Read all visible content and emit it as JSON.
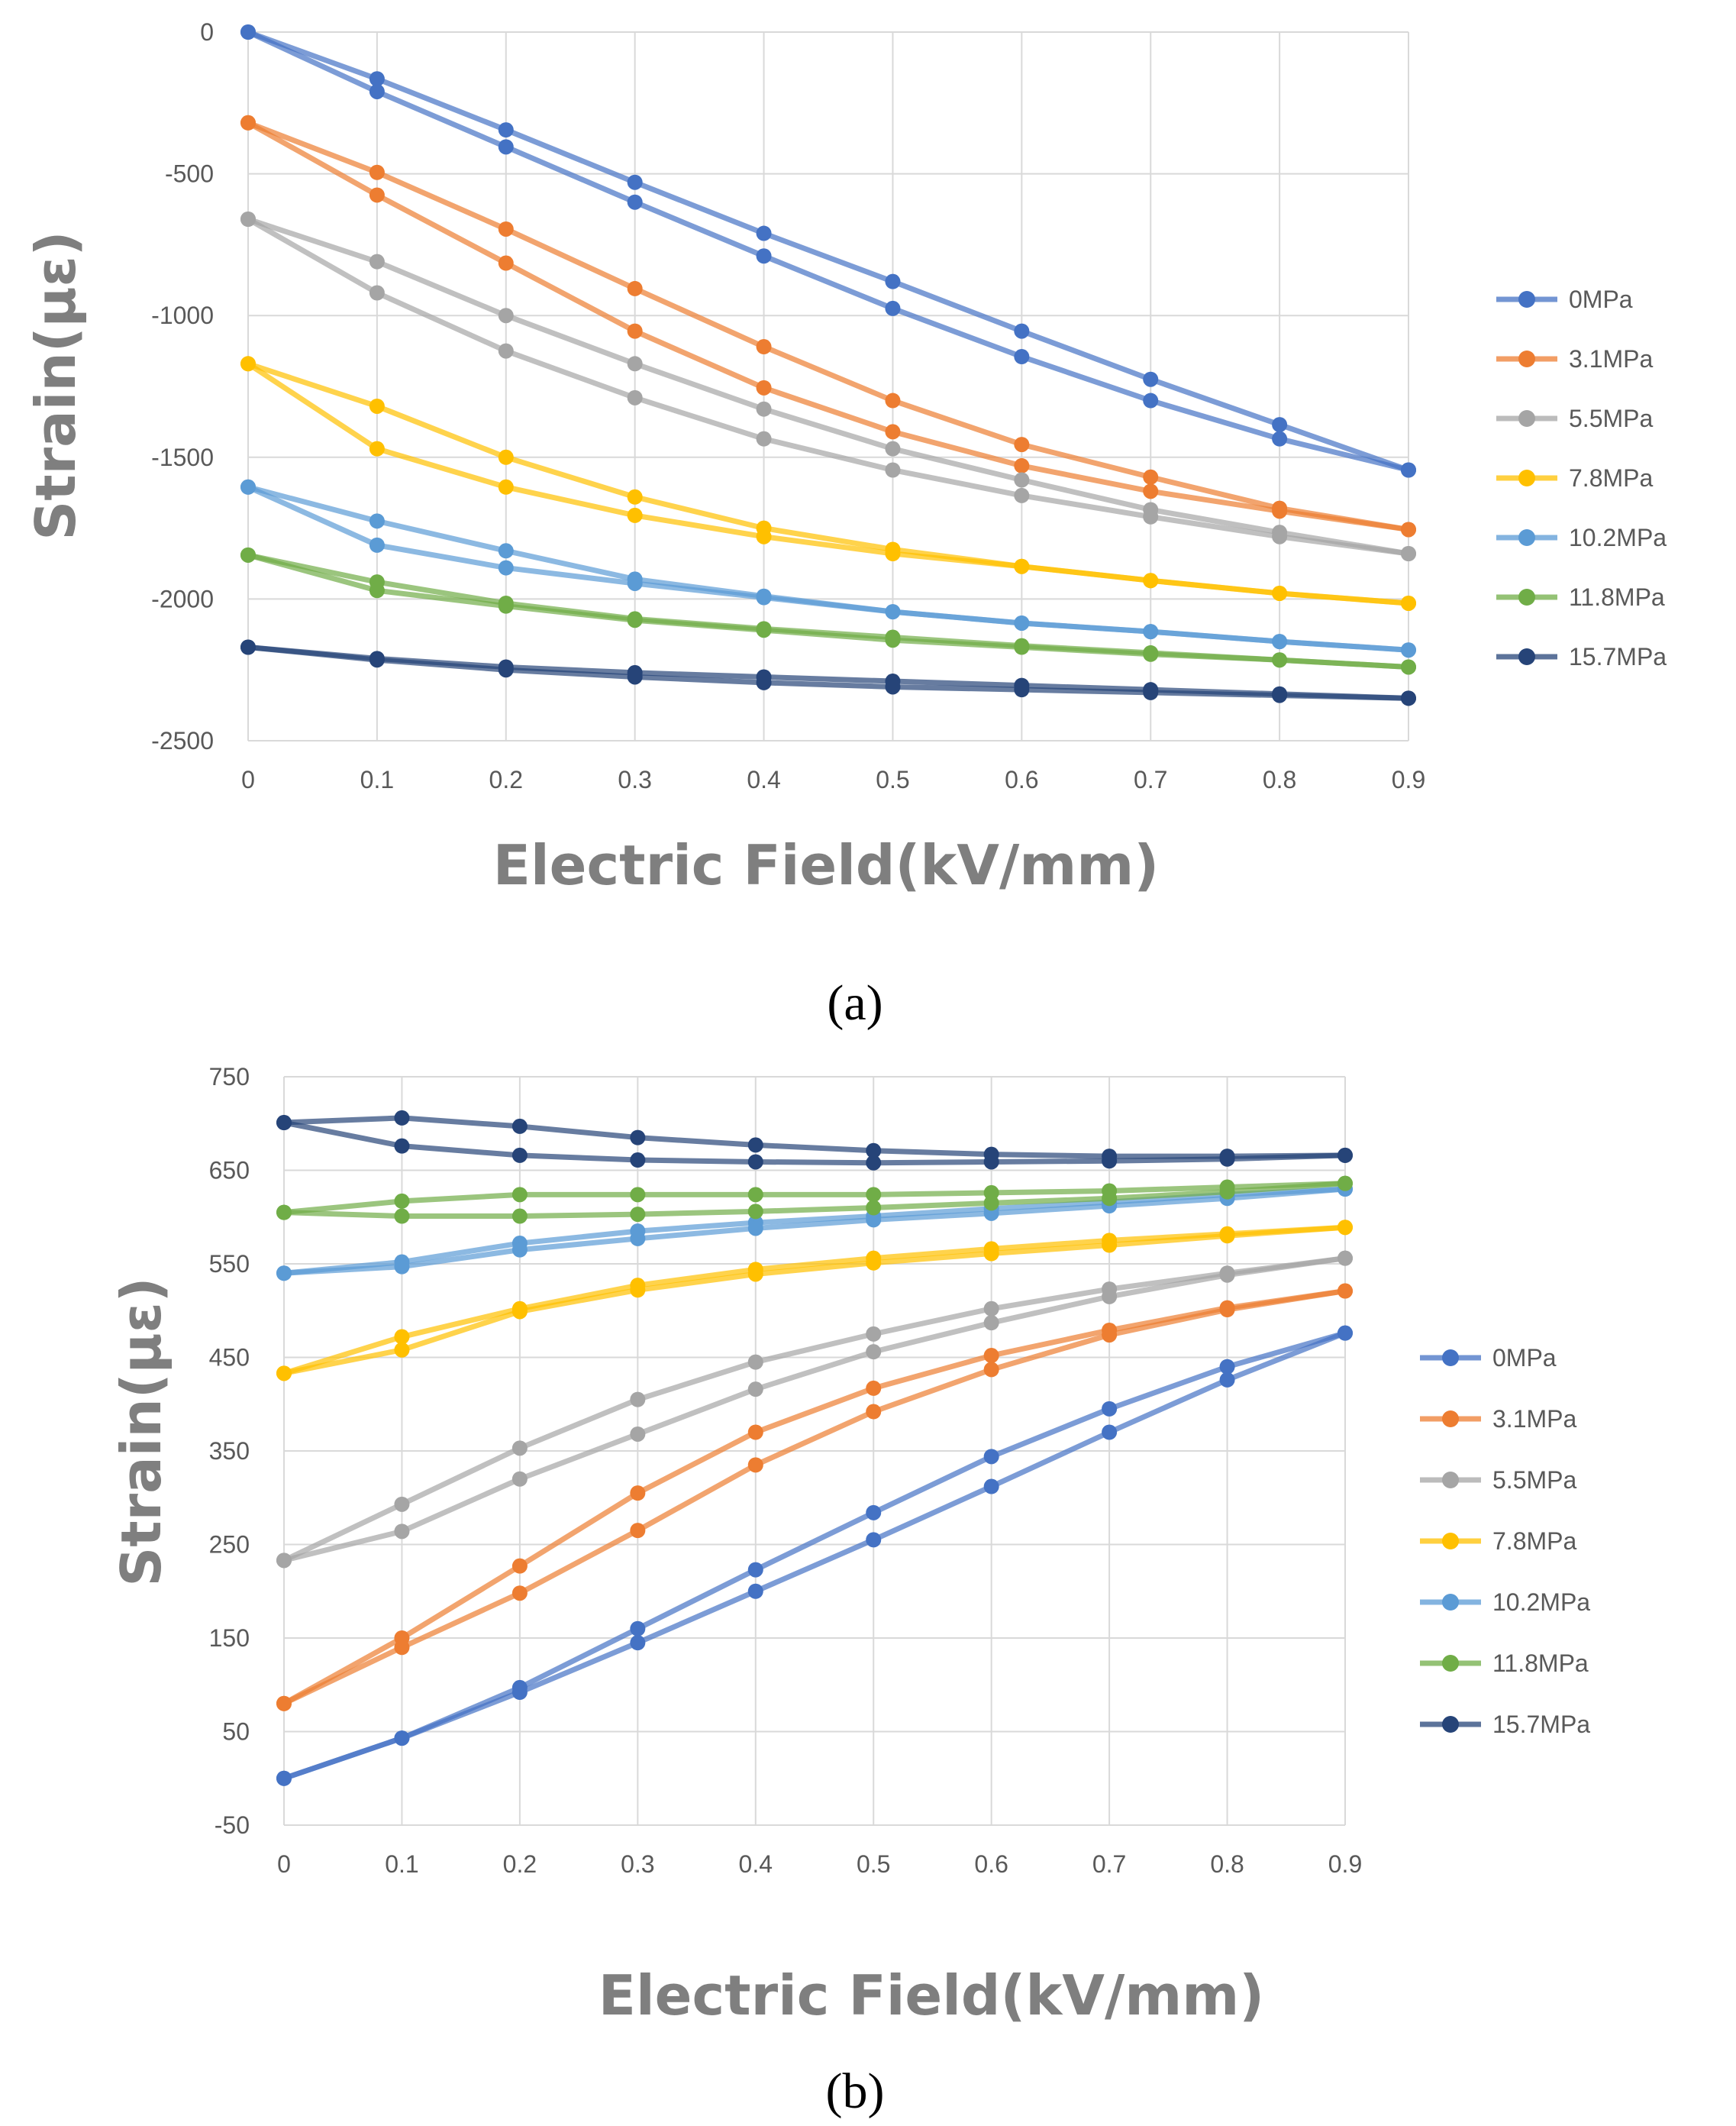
{
  "series_colors": {
    "0MPa": "#4472c4",
    "3.1MPa": "#ed7d31",
    "5.5MPa": "#a5a5a5",
    "7.8MPa": "#ffc000",
    "10.2MPa": "#5b9bd5",
    "11.8MPa": "#70ad47",
    "15.7MPa": "#264478"
  },
  "chart_data": [
    {
      "panel": "(a)",
      "type": "line",
      "xlabel": "Electric Field(kV/mm)",
      "ylabel": "Strain(με)",
      "x": [
        0,
        0.1,
        0.2,
        0.3,
        0.4,
        0.5,
        0.6,
        0.7,
        0.8,
        0.9
      ],
      "x_tick_labels": [
        "0",
        "0.1",
        "0.2",
        "0.3",
        "0.4",
        "0.5",
        "0.6",
        "0.7",
        "0.8",
        "0.9"
      ],
      "ylim": [
        -2500,
        0
      ],
      "y_ticks": [
        0,
        -500,
        -1000,
        -1500,
        -2000,
        -2500
      ],
      "y_tick_labels": [
        "0",
        "-500",
        "-1000",
        "-1500",
        "-2000",
        "-2500"
      ],
      "legend": [
        "0MPa",
        "3.1MPa",
        "5.5MPa",
        "7.8MPa",
        "10.2MPa",
        "11.8MPa",
        "15.7MPa"
      ],
      "series": [
        {
          "name": "0MPa",
          "color": "#4472c4",
          "up": [
            0,
            -165,
            -345,
            -530,
            -710,
            -880,
            -1055,
            -1225,
            -1385,
            -1545
          ],
          "down": [
            0,
            -210,
            -405,
            -600,
            -790,
            -975,
            -1145,
            -1300,
            -1435,
            -1545
          ]
        },
        {
          "name": "3.1MPa",
          "color": "#ed7d31",
          "up": [
            -320,
            -495,
            -695,
            -905,
            -1110,
            -1300,
            -1455,
            -1570,
            -1680,
            -1755
          ],
          "down": [
            -320,
            -575,
            -815,
            -1055,
            -1255,
            -1410,
            -1530,
            -1620,
            -1690,
            -1755
          ]
        },
        {
          "name": "5.5MPa",
          "color": "#a5a5a5",
          "up": [
            -660,
            -810,
            -1000,
            -1170,
            -1330,
            -1470,
            -1580,
            -1685,
            -1765,
            -1840
          ],
          "down": [
            -660,
            -920,
            -1125,
            -1290,
            -1435,
            -1545,
            -1635,
            -1710,
            -1780,
            -1840
          ]
        },
        {
          "name": "7.8MPa",
          "color": "#ffc000",
          "up": [
            -1170,
            -1320,
            -1500,
            -1640,
            -1750,
            -1825,
            -1885,
            -1935,
            -1980,
            -2015
          ],
          "down": [
            -1170,
            -1470,
            -1605,
            -1705,
            -1780,
            -1840,
            -1885,
            -1935,
            -1980,
            -2015
          ]
        },
        {
          "name": "10.2MPa",
          "color": "#5b9bd5",
          "up": [
            -1605,
            -1725,
            -1830,
            -1930,
            -1990,
            -2045,
            -2085,
            -2115,
            -2150,
            -2180
          ],
          "down": [
            -1605,
            -1810,
            -1890,
            -1945,
            -1995,
            -2045,
            -2085,
            -2115,
            -2150,
            -2180
          ]
        },
        {
          "name": "11.8MPa",
          "color": "#70ad47",
          "up": [
            -1845,
            -1940,
            -2015,
            -2070,
            -2105,
            -2135,
            -2165,
            -2190,
            -2215,
            -2240
          ],
          "down": [
            -1845,
            -1970,
            -2025,
            -2075,
            -2110,
            -2145,
            -2170,
            -2195,
            -2215,
            -2240
          ]
        },
        {
          "name": "15.7MPa",
          "color": "#264478",
          "up": [
            -2170,
            -2210,
            -2240,
            -2260,
            -2275,
            -2290,
            -2305,
            -2320,
            -2335,
            -2350
          ],
          "down": [
            -2170,
            -2215,
            -2250,
            -2275,
            -2295,
            -2310,
            -2320,
            -2330,
            -2340,
            -2350
          ]
        }
      ]
    },
    {
      "panel": "(b)",
      "type": "line",
      "xlabel": "Electric Field(kV/mm)",
      "ylabel": "Strain(με)",
      "x": [
        0,
        0.1,
        0.2,
        0.3,
        0.4,
        0.5,
        0.6,
        0.7,
        0.8,
        0.9
      ],
      "x_tick_labels": [
        "0",
        "0.1",
        "0.2",
        "0.3",
        "0.4",
        "0.5",
        "0.6",
        "0.7",
        "0.8",
        "0.9"
      ],
      "ylim": [
        -50,
        750
      ],
      "y_ticks": [
        750,
        650,
        550,
        450,
        350,
        250,
        150,
        50,
        -50
      ],
      "y_tick_labels": [
        "750",
        "650",
        "550",
        "450",
        "350",
        "250",
        "150",
        "50",
        "-50"
      ],
      "legend": [
        "0MPa",
        "3.1MPa",
        "5.5MPa",
        "7.8MPa",
        "10.2MPa",
        "11.8MPa",
        "15.7MPa"
      ],
      "series": [
        {
          "name": "0MPa",
          "color": "#4472c4",
          "up": [
            0,
            43,
            97,
            160,
            223,
            284,
            344,
            395,
            440,
            476
          ],
          "down": [
            0,
            43,
            92,
            145,
            200,
            255,
            312,
            370,
            426,
            476
          ]
        },
        {
          "name": "3.1MPa",
          "color": "#ed7d31",
          "up": [
            80,
            150,
            227,
            305,
            370,
            417,
            452,
            479,
            503,
            521
          ],
          "down": [
            80,
            140,
            198,
            265,
            335,
            392,
            437,
            474,
            501,
            521
          ]
        },
        {
          "name": "5.5MPa",
          "color": "#a5a5a5",
          "up": [
            233,
            293,
            353,
            405,
            445,
            475,
            502,
            523,
            540,
            556
          ],
          "down": [
            233,
            264,
            320,
            368,
            416,
            456,
            487,
            515,
            538,
            556
          ]
        },
        {
          "name": "7.8MPa",
          "color": "#ffc000",
          "up": [
            433,
            472,
            502,
            527,
            544,
            556,
            566,
            575,
            582,
            589
          ],
          "down": [
            433,
            458,
            499,
            522,
            539,
            551,
            561,
            570,
            580,
            589
          ]
        },
        {
          "name": "10.2MPa",
          "color": "#5b9bd5",
          "up": [
            540,
            552,
            572,
            585,
            594,
            601,
            609,
            616,
            624,
            630
          ],
          "down": [
            540,
            547,
            565,
            577,
            588,
            597,
            604,
            612,
            620,
            630
          ]
        },
        {
          "name": "11.8MPa",
          "color": "#70ad47",
          "up": [
            605,
            617,
            624,
            624,
            624,
            624,
            626,
            628,
            632,
            636
          ],
          "down": [
            605,
            601,
            601,
            603,
            606,
            610,
            615,
            620,
            627,
            636
          ]
        },
        {
          "name": "15.7MPa",
          "color": "#264478",
          "up": [
            701,
            706,
            697,
            685,
            677,
            671,
            667,
            665,
            665,
            666
          ],
          "down": [
            701,
            676,
            666,
            661,
            659,
            658,
            659,
            660,
            662,
            666
          ]
        }
      ]
    }
  ]
}
